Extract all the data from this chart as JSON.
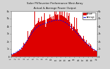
{
  "title": "Solar PV/Inverter Performance West Array",
  "title2": "Actual & Average Power Output",
  "bg_color": "#d4d4d4",
  "plot_bg": "#ffffff",
  "grid_color": "#ffffff",
  "bar_color": "#dd0000",
  "avg_line_color": "#0000ee",
  "actual_color": "#dd0000",
  "ylim": [
    0,
    6
  ],
  "ytick_vals": [
    0,
    1,
    2,
    3,
    4,
    5,
    6
  ],
  "ytick_labels": [
    "0",
    "1k",
    "2k",
    "3k",
    "4k",
    "5k",
    "6k"
  ],
  "n_points": 288,
  "legend_actual": "Actual",
  "legend_avg": "Average",
  "figsize": [
    1.6,
    1.0
  ],
  "dpi": 100
}
